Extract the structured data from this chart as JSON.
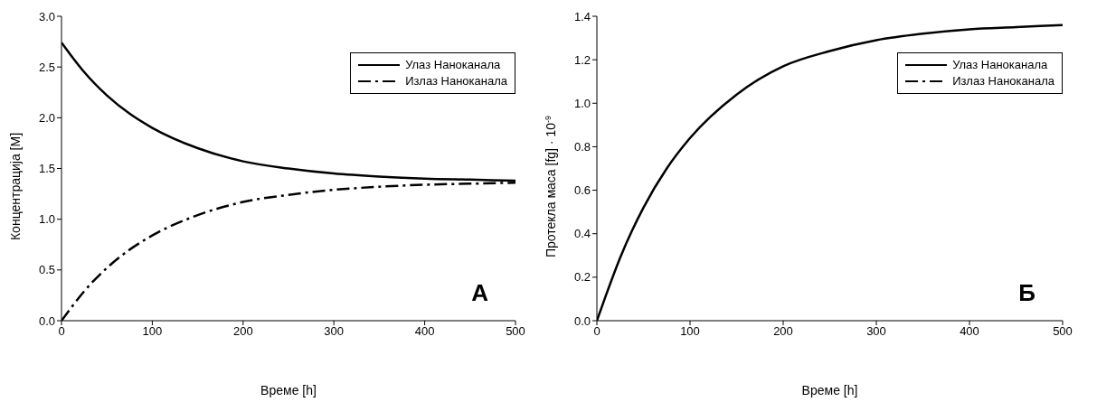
{
  "chart_data": [
    {
      "type": "line",
      "x": [
        0,
        10,
        25,
        50,
        75,
        100,
        150,
        200,
        250,
        300,
        350,
        400,
        450,
        500
      ],
      "xlabel": "Време [h]",
      "ylabel": "Концентрација [M]",
      "series": [
        {
          "name": "Улаз Наноканала",
          "color": "#000000",
          "line_style": "solid",
          "values": [
            2.74,
            2.62,
            2.45,
            2.22,
            2.04,
            1.9,
            1.7,
            1.57,
            1.5,
            1.45,
            1.42,
            1.4,
            1.39,
            1.38
          ]
        },
        {
          "name": "Излаз Наноканала",
          "color": "#000000",
          "line_style": "dashed",
          "values": [
            0,
            0.12,
            0.29,
            0.52,
            0.7,
            0.84,
            1.04,
            1.17,
            1.24,
            1.29,
            1.32,
            1.34,
            1.35,
            1.36
          ]
        }
      ],
      "xlim": [
        0,
        500
      ],
      "xticks": [
        0,
        100,
        200,
        300,
        400,
        500
      ],
      "ylim": [
        0,
        3
      ],
      "yticks": [
        {
          "value": 0,
          "label": "0.0"
        },
        {
          "value": 0.5,
          "label": "0.5"
        },
        {
          "value": 1,
          "label": "1.0"
        },
        {
          "value": 1.5,
          "label": "1.5"
        },
        {
          "value": 2,
          "label": "2.0"
        },
        {
          "value": 2.5,
          "label": "2.5"
        },
        {
          "value": 3,
          "label": "3.0"
        }
      ],
      "legend": "top right",
      "annotations": [
        "А"
      ]
    },
    {
      "type": "line",
      "x": [
        0,
        10,
        25,
        50,
        75,
        100,
        150,
        200,
        250,
        300,
        350,
        400,
        450,
        500
      ],
      "xlabel": "Време [h]",
      "ylabel": "Протекла маса [fg] · 10$^{-9}$",
      "series": [
        {
          "name": "Улаз Наноканала",
          "color": "#000000",
          "line_style": "solid",
          "values": [
            0,
            0.12,
            0.29,
            0.52,
            0.7,
            0.84,
            1.04,
            1.17,
            1.24,
            1.29,
            1.32,
            1.34,
            1.35,
            1.36
          ]
        },
        {
          "name": "Излаз Наноканала",
          "color": "#000000",
          "line_style": "dashed",
          "values": [
            null,
            null,
            null,
            null,
            null,
            null,
            null,
            null,
            null,
            null,
            null,
            null,
            null,
            null
          ]
        }
      ],
      "xlim": [
        0,
        500
      ],
      "xticks": [
        0,
        100,
        200,
        300,
        400,
        500
      ],
      "ylim": [
        0,
        1.4
      ],
      "yticks": [
        {
          "value": 0,
          "label": "0.0"
        },
        {
          "value": 0.2,
          "label": "0.2"
        },
        {
          "value": 0.4,
          "label": "0.4"
        },
        {
          "value": 0.6,
          "label": "0.6"
        },
        {
          "value": 0.8,
          "label": "0.8"
        },
        {
          "value": 1,
          "label": "1.0"
        },
        {
          "value": 1.2,
          "label": "1.2"
        },
        {
          "value": 1.4,
          "label": "1.4"
        }
      ],
      "legend": "top right",
      "annotations": [
        "Б"
      ]
    }
  ]
}
